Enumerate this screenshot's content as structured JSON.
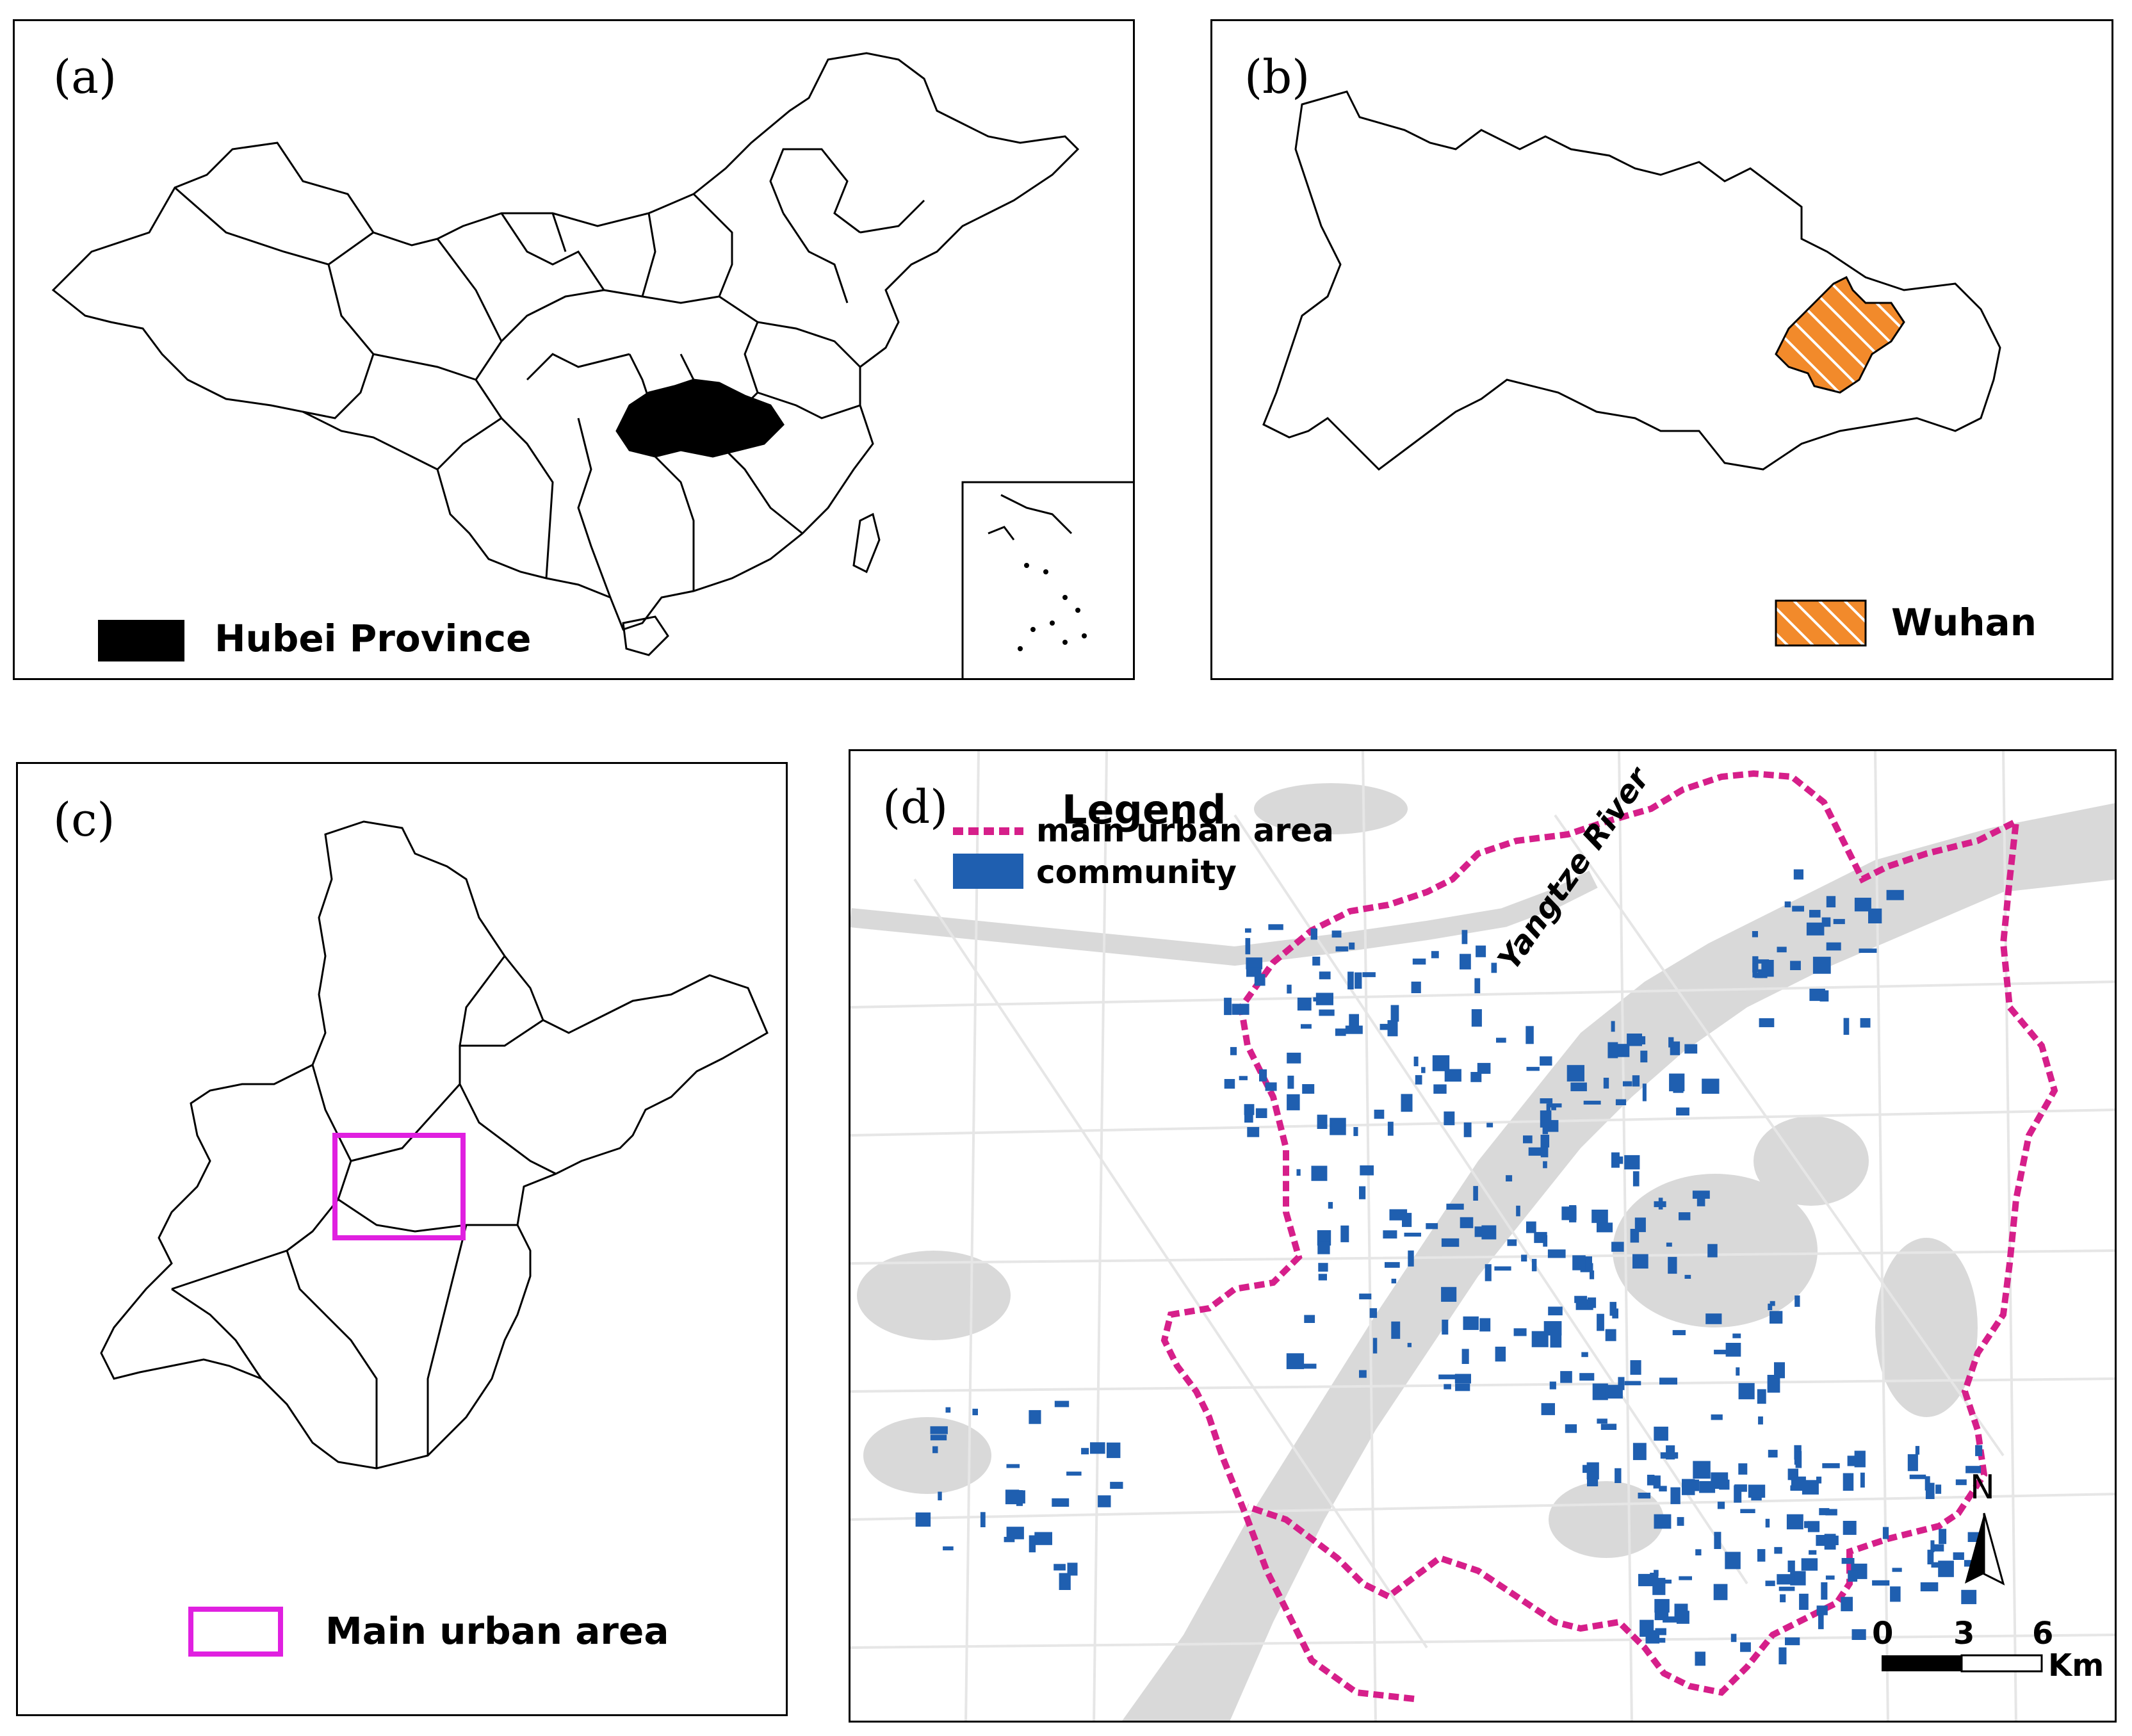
{
  "panels": {
    "a": {
      "label": "(a)",
      "legend_label": "Hubei Province",
      "legend_color": "#000000"
    },
    "b": {
      "label": "(b)",
      "legend_label": "Wuhan",
      "legend_color": "#f28a2b"
    },
    "c": {
      "label": "(c)",
      "legend_label": "Main urban area",
      "legend_color": "#e020e0"
    },
    "d": {
      "label": "(d)",
      "legend_title": "Legend",
      "legend_items": [
        {
          "label": "main urban area",
          "color": "#d61f8a",
          "symbol": "dashed-line"
        },
        {
          "label": "community",
          "color": "#1f5fb0",
          "symbol": "filled-rect"
        }
      ],
      "river_label": "Yangtze   River",
      "north_label": "N",
      "scale_ticks": [
        "0",
        "3",
        "6"
      ],
      "scale_unit": "Km"
    }
  }
}
